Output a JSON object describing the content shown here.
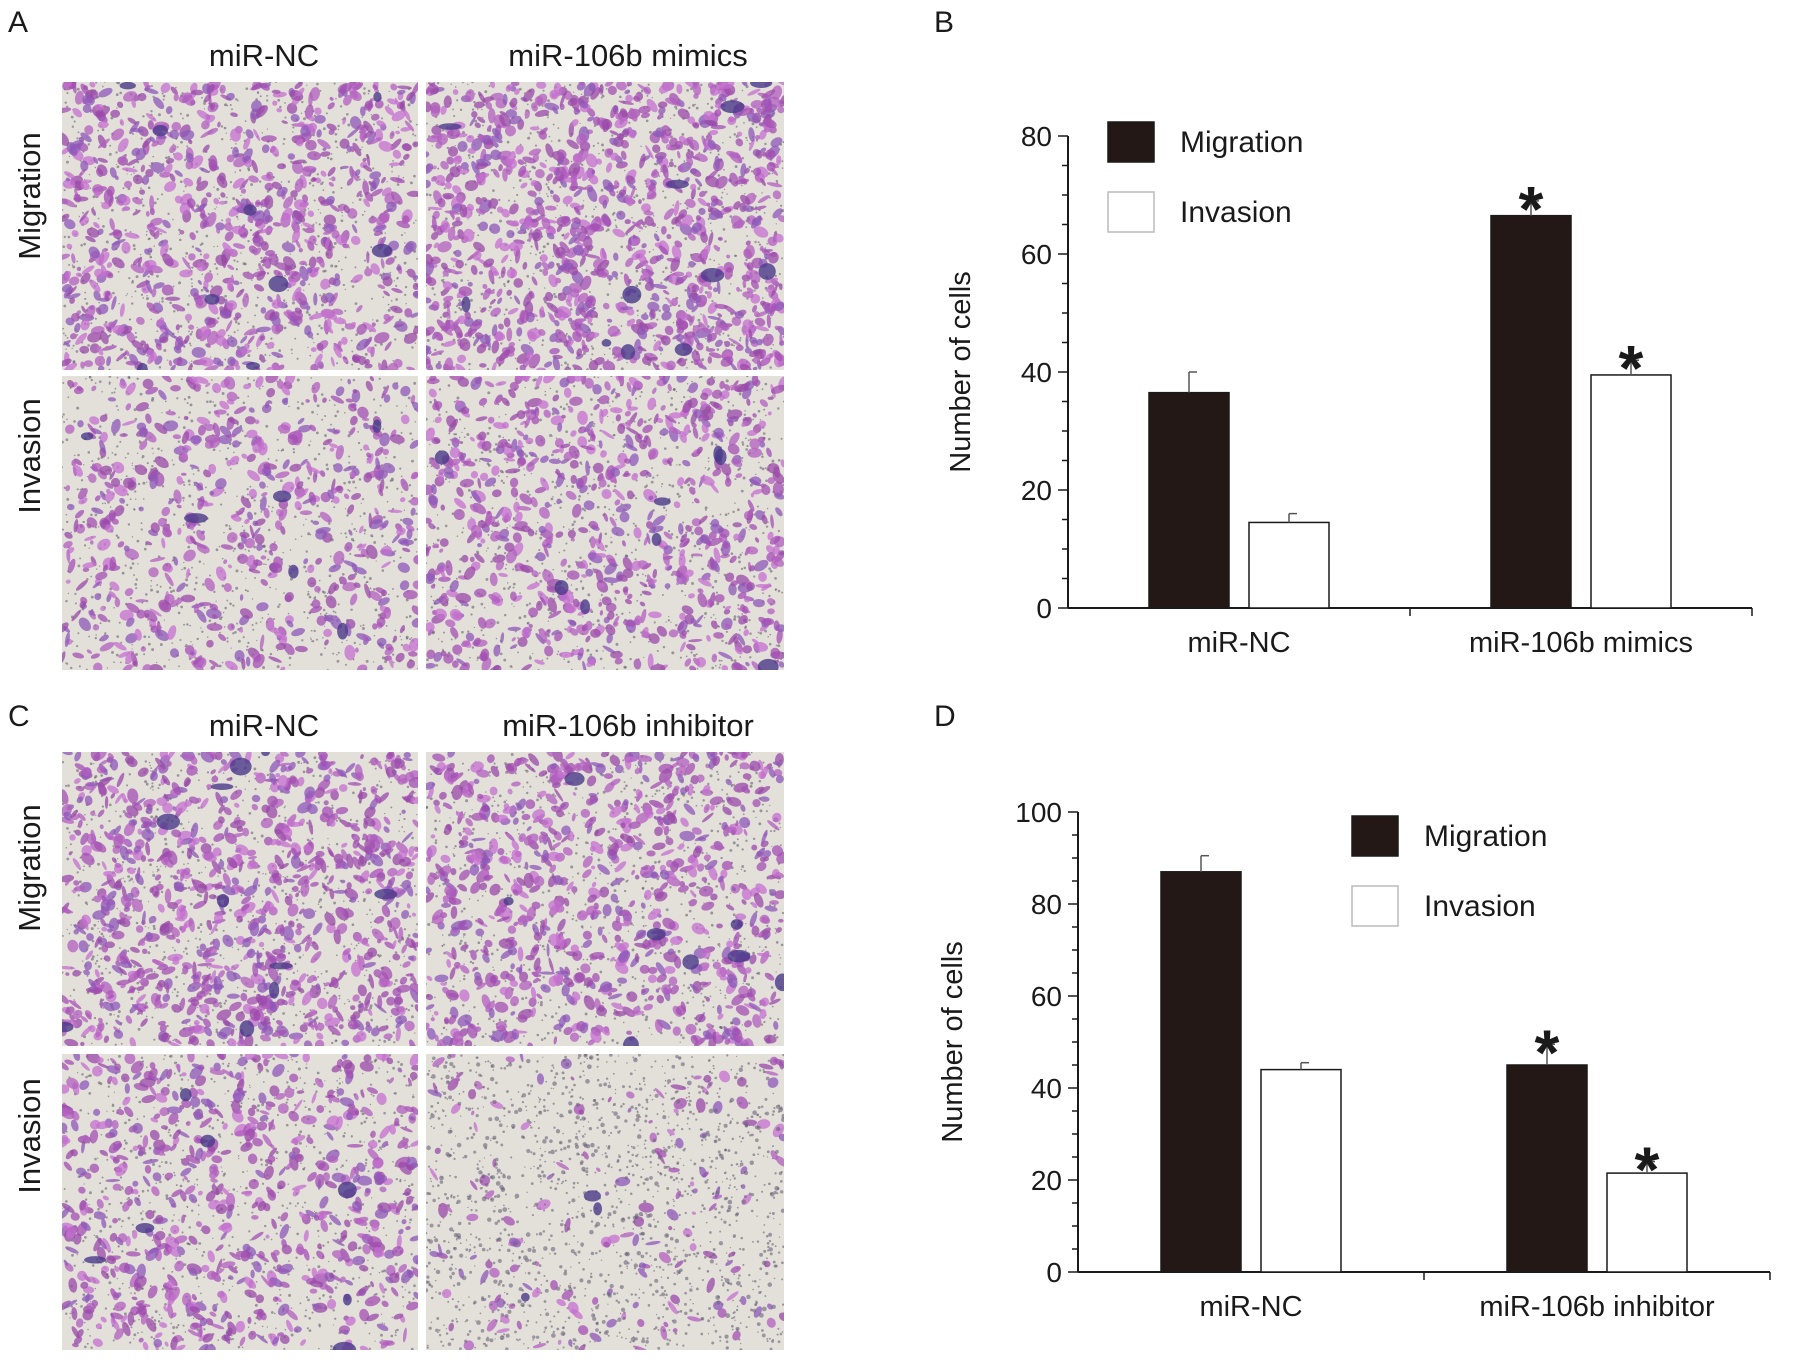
{
  "panels": {
    "A": {
      "letter": "A",
      "columns": [
        "miR-NC",
        "miR-106b mimics"
      ],
      "rows": [
        "Migration",
        "Invasion"
      ]
    },
    "C": {
      "letter": "C",
      "columns": [
        "miR-NC",
        "miR-106b inhibitor"
      ],
      "rows": [
        "Migration",
        "Invasion"
      ]
    },
    "B": {
      "letter": "B"
    },
    "D": {
      "letter": "D"
    }
  },
  "colors": {
    "migration_bar": "#231815",
    "invasion_bar": "#ffffff",
    "stain_purple": "#b25fbf",
    "stain_dark": "#4a3a8a",
    "membrane_bg": "#e3dfd9"
  },
  "chart_data": [
    {
      "panel": "B",
      "type": "bar",
      "categories": [
        "miR-NC",
        "miR-106b mimics"
      ],
      "series": [
        {
          "name": "Migration",
          "values": [
            36.5,
            66.5
          ],
          "errors": [
            3.5,
            2.5
          ],
          "significant": [
            false,
            true
          ]
        },
        {
          "name": "Invasion",
          "values": [
            14.5,
            39.5
          ],
          "errors": [
            1.5,
            2.5
          ],
          "significant": [
            false,
            true
          ]
        }
      ],
      "xlabel": "",
      "ylabel": "Number of cells",
      "ylim": [
        0,
        80
      ],
      "yticks": [
        0,
        20,
        40,
        60,
        80
      ],
      "significance_marker": "*",
      "legend": "top-left",
      "grid": false
    },
    {
      "panel": "D",
      "type": "bar",
      "categories": [
        "miR-NC",
        "miR-106b inhibitor"
      ],
      "series": [
        {
          "name": "Migration",
          "values": [
            87,
            45
          ],
          "errors": [
            3.5,
            4.5
          ],
          "significant": [
            false,
            true
          ]
        },
        {
          "name": "Invasion",
          "values": [
            44,
            21.5
          ],
          "errors": [
            1.5,
            2.5
          ],
          "significant": [
            false,
            true
          ]
        }
      ],
      "xlabel": "",
      "ylabel": "Number of cells",
      "ylim": [
        0,
        100
      ],
      "yticks": [
        0,
        20,
        40,
        60,
        80,
        100
      ],
      "significance_marker": "*",
      "legend": "top-center",
      "grid": false
    }
  ]
}
